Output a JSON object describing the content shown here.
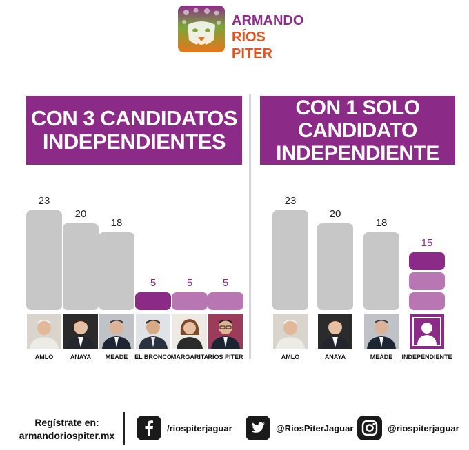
{
  "brand": {
    "line1": "ARMANDO",
    "line2": "RÍOS PITER",
    "purple": "#8c2b87",
    "orange": "#e8521c",
    "gray": "#c7c7c7",
    "light_purple": "#b877b2"
  },
  "panels": {
    "left_title": [
      "CON 3 CANDIDATOS",
      "INDEPENDIENTES"
    ],
    "right_title": [
      "CON 1 SOLO",
      "CANDIDATO",
      "INDEPENDIENTE"
    ]
  },
  "chart_data": [
    {
      "type": "bar",
      "title": "CON 3 CANDIDATOS INDEPENDIENTES",
      "categories": [
        "AMLO",
        "ANAYA",
        "MEADE",
        "EL BRONCO",
        "MARGARITA",
        "RÍOS PITER"
      ],
      "values": [
        23,
        20,
        18,
        5,
        5,
        5
      ],
      "data_labels": [
        "23",
        "20",
        "18",
        "5",
        "5",
        "5"
      ],
      "xlabel": "",
      "ylabel": "",
      "ylim": [
        0,
        23
      ],
      "grid": false,
      "legend": "none"
    },
    {
      "type": "bar",
      "title": "CON 1 SOLO CANDIDATO INDEPENDIENTE",
      "categories": [
        "AMLO",
        "ANAYA",
        "MEADE",
        "INDEPENDIENTE"
      ],
      "values": [
        23,
        20,
        18,
        15
      ],
      "data_labels": [
        "23",
        "20",
        "18",
        "15"
      ],
      "stack_segments_last": [
        5,
        5,
        5
      ],
      "xlabel": "",
      "ylabel": "",
      "ylim": [
        0,
        23
      ],
      "grid": false,
      "legend": "none"
    }
  ],
  "footer": {
    "register_line1": "Regístrate en:",
    "register_line2": "armandoriospiter.mx",
    "facebook": "/riospiterjaguar",
    "twitter": "@RiosPiterJaguar",
    "instagram": "@riospiterjaguar",
    "facebook_icon": "facebook-icon",
    "twitter_icon": "twitter-icon",
    "instagram_icon": "instagram-icon"
  }
}
